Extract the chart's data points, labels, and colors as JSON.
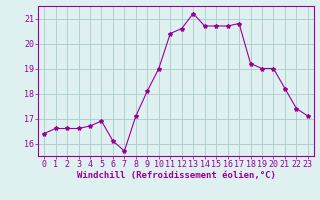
{
  "x": [
    0,
    1,
    2,
    3,
    4,
    5,
    6,
    7,
    8,
    9,
    10,
    11,
    12,
    13,
    14,
    15,
    16,
    17,
    18,
    19,
    20,
    21,
    22,
    23
  ],
  "y": [
    16.4,
    16.6,
    16.6,
    16.6,
    16.7,
    16.9,
    16.1,
    15.7,
    17.1,
    18.1,
    19.0,
    20.4,
    20.6,
    21.2,
    20.7,
    20.7,
    20.7,
    20.8,
    19.2,
    19.0,
    19.0,
    18.2,
    17.4,
    17.1
  ],
  "line_color": "#990099",
  "marker": "*",
  "marker_size": 3,
  "bg_color": "#dff0f0",
  "grid_color": "#aacccc",
  "xlabel": "Windchill (Refroidissement éolien,°C)",
  "xlabel_color": "#990099",
  "xlim": [
    -0.5,
    23.5
  ],
  "ylim": [
    15.5,
    21.5
  ],
  "yticks": [
    16,
    17,
    18,
    19,
    20,
    21
  ],
  "xticks": [
    0,
    1,
    2,
    3,
    4,
    5,
    6,
    7,
    8,
    9,
    10,
    11,
    12,
    13,
    14,
    15,
    16,
    17,
    18,
    19,
    20,
    21,
    22,
    23
  ],
  "tick_color": "#990099",
  "spine_color": "#990099",
  "tick_fontsize": 6,
  "xlabel_fontsize": 6.5
}
